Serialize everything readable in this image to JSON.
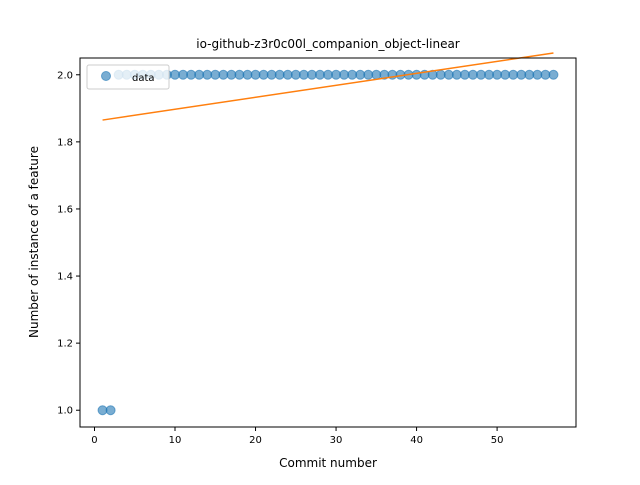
{
  "chart_data": {
    "type": "scatter",
    "title": "io-github-z3r0c00l_companion_object-linear",
    "xlabel": "Commit number",
    "ylabel": "Number of instance of a feature",
    "xlim": [
      -1.8,
      59.8
    ],
    "ylim": [
      0.95,
      2.05
    ],
    "xticks": [
      0,
      10,
      20,
      30,
      40,
      50
    ],
    "yticks": [
      1.0,
      1.2,
      1.4,
      1.6,
      1.8,
      2.0
    ],
    "xtick_labels": [
      "0",
      "10",
      "20",
      "30",
      "40",
      "50"
    ],
    "ytick_labels": [
      "1.0",
      "1.2",
      "1.4",
      "1.6",
      "1.8",
      "2.0"
    ],
    "legend": {
      "position": "upper-left",
      "entries": [
        "data"
      ]
    },
    "grid": false,
    "series": [
      {
        "name": "data",
        "kind": "points",
        "color": "#1f77b4",
        "x": [
          1,
          2,
          3,
          4,
          5,
          6,
          7,
          8,
          9,
          10,
          11,
          12,
          13,
          14,
          15,
          16,
          17,
          18,
          19,
          20,
          21,
          22,
          23,
          24,
          25,
          26,
          27,
          28,
          29,
          30,
          31,
          32,
          33,
          34,
          35,
          36,
          37,
          38,
          39,
          40,
          41,
          42,
          43,
          44,
          45,
          46,
          47,
          48,
          49,
          50,
          51,
          52,
          53,
          54,
          55,
          56,
          57
        ],
        "y": [
          1,
          1,
          2,
          2,
          2,
          2,
          2,
          2,
          2,
          2,
          2,
          2,
          2,
          2,
          2,
          2,
          2,
          2,
          2,
          2,
          2,
          2,
          2,
          2,
          2,
          2,
          2,
          2,
          2,
          2,
          2,
          2,
          2,
          2,
          2,
          2,
          2,
          2,
          2,
          2,
          2,
          2,
          2,
          2,
          2,
          2,
          2,
          2,
          2,
          2,
          2,
          2,
          2,
          2,
          2,
          2,
          2
        ]
      },
      {
        "kind": "line",
        "color": "#ff7f0e",
        "x": [
          1,
          57
        ],
        "y": [
          1.865,
          2.065
        ]
      }
    ]
  }
}
